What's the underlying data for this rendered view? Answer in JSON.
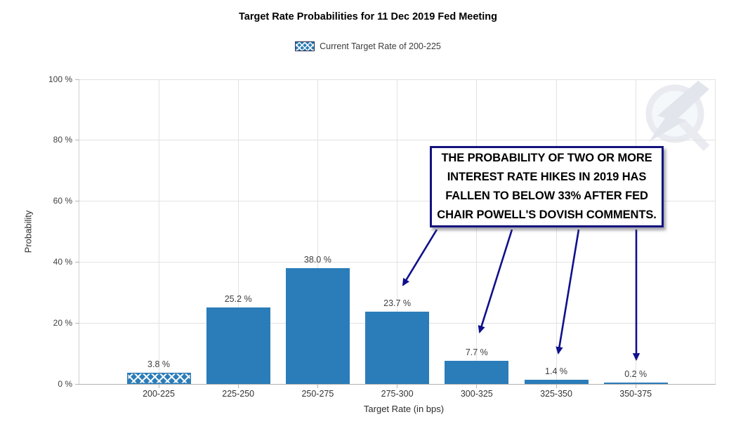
{
  "chart_data": {
    "type": "bar",
    "title": "Target Rate Probabilities for 11 Dec 2019 Fed Meeting",
    "legend_label": "Current Target Rate of 200-225",
    "legend_position": "top",
    "categories": [
      "200-225",
      "225-250",
      "250-275",
      "275-300",
      "300-325",
      "325-350",
      "350-375"
    ],
    "values": [
      3.8,
      25.2,
      38.0,
      23.7,
      7.7,
      1.4,
      0.2
    ],
    "value_labels": [
      "3.8 %",
      "25.2 %",
      "38.0 %",
      "23.7 %",
      "7.7 %",
      "1.4 %",
      "0.2 %"
    ],
    "xlabel": "Target Rate (in bps)",
    "ylabel": "Probability",
    "ylim": [
      0,
      100
    ],
    "yticks": [
      0,
      20,
      40,
      60,
      80,
      100
    ],
    "ytick_labels": [
      "0 %",
      "20 %",
      "40 %",
      "60 %",
      "80 %",
      "100 %"
    ],
    "grid": true,
    "bar_color": "#2b7db9",
    "highlighted_category": "200-225",
    "highlight_style": "blue-crosshatch"
  },
  "annotation": {
    "text": "THE PROBABILITY OF TWO OR MORE\nINTEREST RATE HIKES IN 2019 HAS\nFALLEN TO BELOW 33% AFTER FED\nCHAIR POWELL'S DOVISH COMMENTS.",
    "border_color": "#13137e",
    "arrow_color": "#10108c",
    "arrow_targets": [
      "275-300",
      "300-325",
      "325-350",
      "350-375"
    ]
  },
  "watermark": {
    "name": "q-lightning-bolt-logo",
    "ring_color": "#e9ebf1",
    "bolt_color": "#e2e5ec"
  }
}
